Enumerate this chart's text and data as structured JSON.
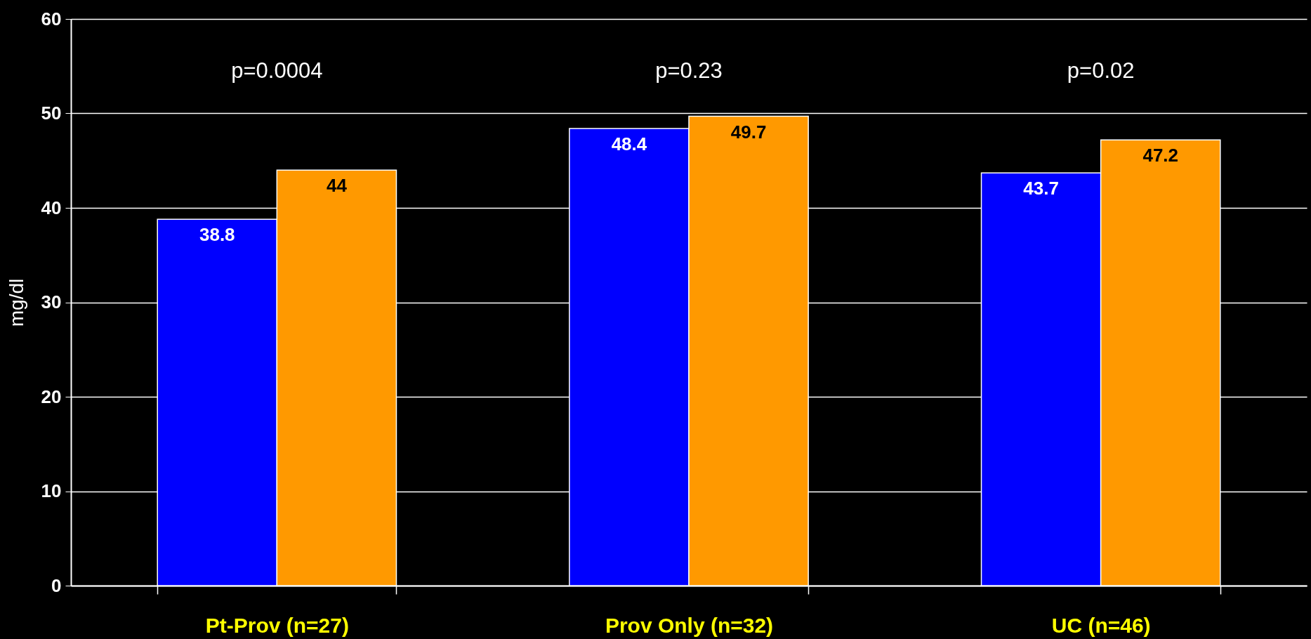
{
  "chart_data": {
    "type": "bar",
    "ylabel": "mg/dl",
    "categories": [
      "Pt-Prov (n=27)",
      "Prov Only (n=32)",
      "UC (n=46)"
    ],
    "series": [
      {
        "color": "#0000ff",
        "values": [
          38.8,
          48.4,
          43.7
        ]
      },
      {
        "color": "#ff9900",
        "values": [
          44,
          49.7,
          47.2
        ]
      }
    ],
    "ylim": [
      0,
      60
    ],
    "yticks": [
      0,
      10,
      20,
      30,
      40,
      50,
      60
    ],
    "grid": "y",
    "legend": false,
    "data_labels": true,
    "annotations": [
      "p=0.0004",
      "p=0.23",
      "p=0.02"
    ]
  }
}
